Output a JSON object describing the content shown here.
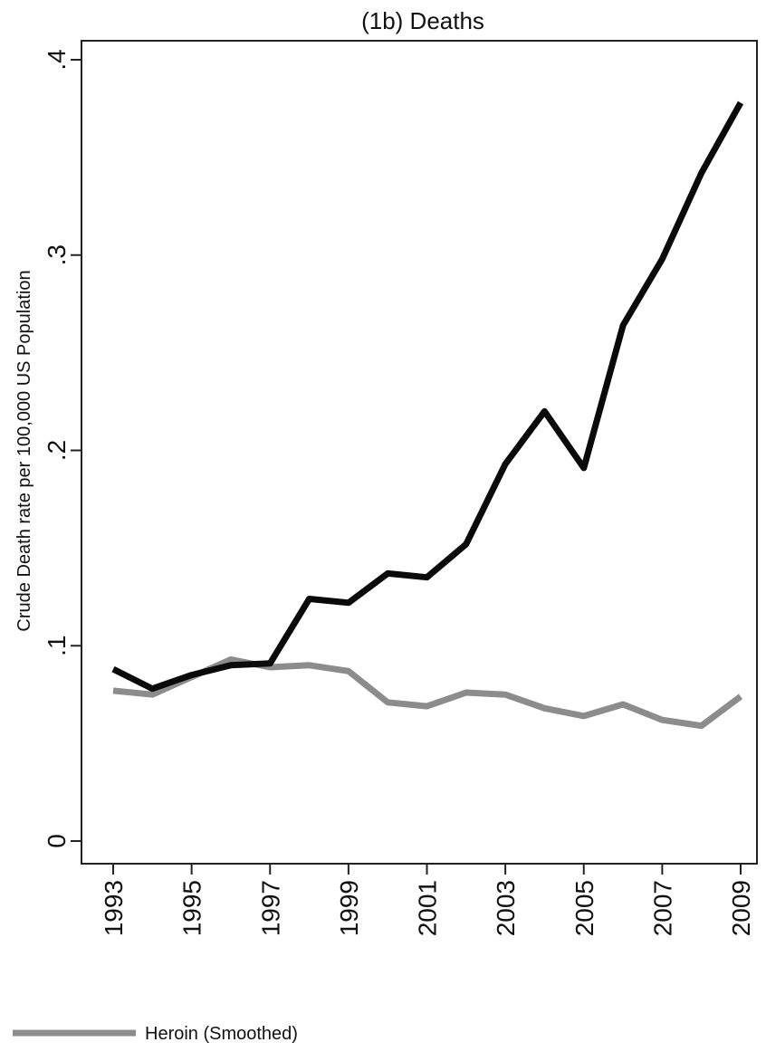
{
  "chart_data": {
    "type": "line",
    "title": "(1b) Deaths",
    "xlabel": "",
    "ylabel": "Crude Death rate per 100,000 US Population",
    "x": [
      1993,
      1994,
      1995,
      1996,
      1997,
      1998,
      1999,
      2000,
      2001,
      2002,
      2003,
      2004,
      2005,
      2006,
      2007,
      2008,
      2009
    ],
    "xticks": [
      1993,
      1995,
      1997,
      1999,
      2001,
      2003,
      2005,
      2007,
      2009
    ],
    "yticks": [
      0,
      0.1,
      0.2,
      0.3,
      0.4
    ],
    "ytick_labels": [
      "0",
      ".1",
      ".2",
      ".3",
      ".4"
    ],
    "xlim": [
      1993,
      2009
    ],
    "ylim": [
      0,
      0.4
    ],
    "grid": false,
    "legend_position": "bottom-left",
    "series": [
      {
        "name": "",
        "color": "#0a0a0a",
        "values": [
          0.088,
          0.078,
          0.085,
          0.09,
          0.091,
          0.124,
          0.122,
          0.137,
          0.135,
          0.152,
          0.193,
          0.22,
          0.191,
          0.264,
          0.298,
          0.342,
          0.378
        ]
      },
      {
        "name": "Heroin (Smoothed)",
        "color": "#8c8c8c",
        "values": [
          0.077,
          0.075,
          0.084,
          0.093,
          0.089,
          0.09,
          0.087,
          0.071,
          0.069,
          0.076,
          0.075,
          0.068,
          0.064,
          0.07,
          0.062,
          0.059,
          0.074
        ]
      }
    ]
  }
}
